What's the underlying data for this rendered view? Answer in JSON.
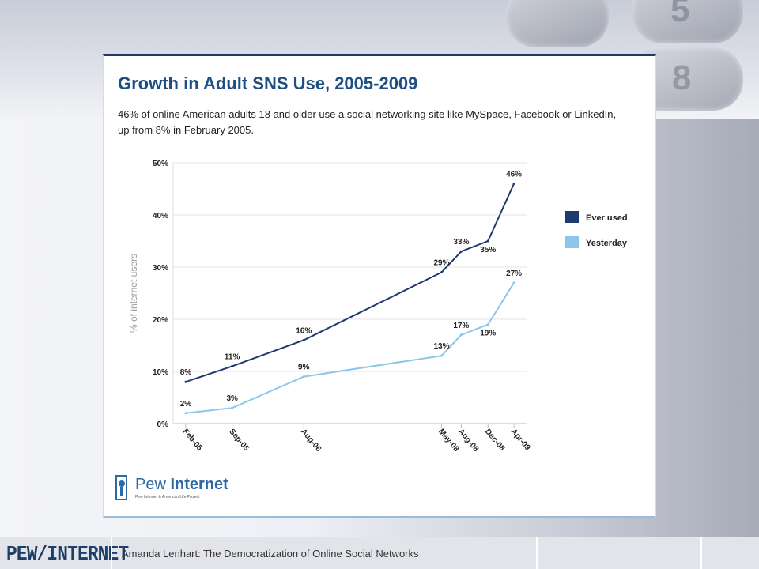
{
  "slide": {
    "title": "Growth in Adult SNS Use, 2005-2009",
    "subtitle": "46% of online American adults 18 and older use a social networking site like MySpace, Facebook or LinkedIn, up from 8% in February 2005.",
    "logo": {
      "name_light": "Pew ",
      "name_bold": "Internet",
      "tagline": "Pew Internet & American Life Project"
    },
    "footer": {
      "brand": "PEW/INTERNET",
      "caption": "Amanda Lenhart: The Democratization of Online Social Networks"
    }
  },
  "colors": {
    "ever_used": "#1f3a6e",
    "yesterday": "#8ec5ea",
    "title": "#1f4e83"
  },
  "chart_data": {
    "type": "line",
    "title": "",
    "xlabel": "",
    "ylabel": "% of internet users",
    "ylim": [
      0,
      50
    ],
    "yticks": [
      0,
      10,
      20,
      30,
      40,
      50
    ],
    "ytick_labels": [
      "0%",
      "10%",
      "20%",
      "30%",
      "40%",
      "50%"
    ],
    "x": [
      "Feb-05",
      "Sep-05",
      "Aug-06",
      "May-08",
      "Aug-08",
      "Dec-08",
      "Apr-09"
    ],
    "x_months": [
      2005.08,
      2005.67,
      2006.58,
      2008.33,
      2008.58,
      2008.92,
      2009.25
    ],
    "grid": "horizontal",
    "legend": "right",
    "series": [
      {
        "name": "Ever used",
        "values": [
          8,
          11,
          16,
          29,
          33,
          35,
          46
        ],
        "labels": [
          "8%",
          "11%",
          "16%",
          "29%",
          "33%",
          "35%",
          "46%"
        ]
      },
      {
        "name": "Yesterday",
        "values": [
          2,
          3,
          9,
          13,
          17,
          19,
          27
        ],
        "labels": [
          "2%",
          "3%",
          "9%",
          "13%",
          "17%",
          "19%",
          "27%"
        ]
      }
    ]
  }
}
